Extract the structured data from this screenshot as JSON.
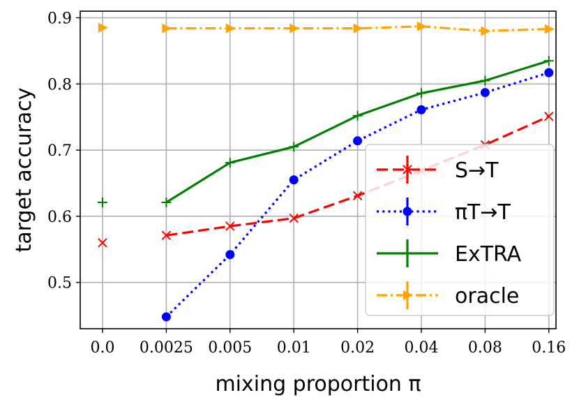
{
  "chart_data": {
    "type": "line",
    "title": "",
    "xlabel": "mixing proportion π",
    "ylabel": "target accuracy",
    "categories": [
      "0.0",
      "0.0025",
      "0.005",
      "0.01",
      "0.02",
      "0.04",
      "0.08",
      "0.16"
    ],
    "ylim": [
      0.43,
      0.91
    ],
    "yticks": [
      0.5,
      0.6,
      0.7,
      0.8,
      0.9
    ],
    "ytick_labels": [
      "0.5",
      "0.6",
      "0.7",
      "0.8",
      "0.9"
    ],
    "grid": true,
    "legend_position": "lower-right",
    "series": [
      {
        "name": "S→T",
        "color": "#ff0000",
        "linestyle": "dashed",
        "marker": "x",
        "values": [
          0.56,
          0.571,
          0.585,
          0.597,
          0.631,
          0.669,
          0.708,
          0.751
        ]
      },
      {
        "name": "πT→T",
        "color": "#0000ff",
        "linestyle": "dotted",
        "marker": "circle",
        "values": [
          null,
          0.448,
          0.542,
          0.655,
          0.714,
          0.761,
          0.787,
          0.817
        ]
      },
      {
        "name": "ExTRA",
        "color": "#008000",
        "linestyle": "solid",
        "marker": "plus",
        "values": [
          0.621,
          0.621,
          0.681,
          0.705,
          0.752,
          0.786,
          0.805,
          0.835
        ]
      },
      {
        "name": "oracle",
        "color": "#ffa500",
        "linestyle": "dashdot",
        "marker": "triangle-right",
        "values": [
          0.885,
          0.884,
          0.884,
          0.884,
          0.884,
          0.887,
          0.88,
          0.883
        ]
      }
    ]
  }
}
